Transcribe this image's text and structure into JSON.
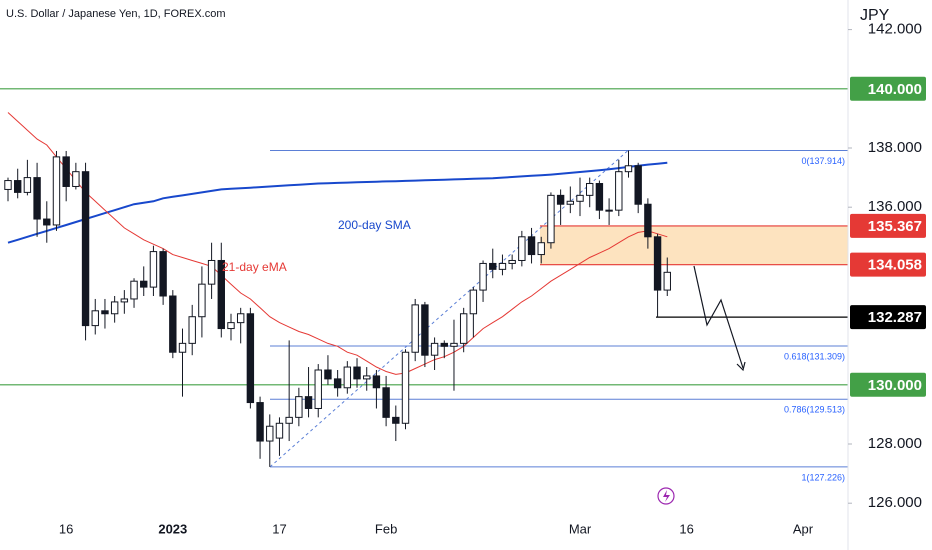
{
  "chart_data": {
    "type": "candlestick",
    "title": "U.S. Dollar / Japanese Yen, 1D, FOREX.com",
    "unit": "JPY",
    "categories": [
      null,
      null,
      null,
      null,
      null,
      null,
      "16",
      null,
      null,
      null,
      null,
      null,
      null,
      null,
      null,
      null,
      null,
      "2023",
      null,
      null,
      null,
      null,
      null,
      null,
      null,
      null,
      null,
      null,
      "17",
      null,
      null,
      null,
      null,
      null,
      null,
      null,
      null,
      null,
      null,
      "Feb",
      null,
      null,
      null,
      null,
      null,
      null,
      null,
      null,
      null,
      null,
      null,
      null,
      null,
      null,
      null,
      null,
      null,
      null,
      null,
      "Mar",
      null,
      null,
      null,
      null,
      null,
      null,
      null,
      null,
      null,
      null,
      "16",
      null,
      null,
      null,
      null,
      null,
      null,
      null,
      null,
      null,
      null,
      null,
      "Apr"
    ],
    "open": [
      136.6,
      136.9,
      136.5,
      137.0,
      135.6,
      135.4,
      137.7,
      136.7,
      137.2,
      132.0,
      132.5,
      132.4,
      132.8,
      132.9,
      133.5,
      133.3,
      134.5,
      133.0,
      131.1,
      131.4,
      132.3,
      133.4,
      134.2,
      131.9,
      132.1,
      132.4,
      129.4,
      128.1,
      128.2,
      128.7,
      128.9,
      129.6,
      129.2,
      130.5,
      130.2,
      129.9,
      130.6,
      130.2,
      130.3,
      129.9,
      128.9,
      128.7,
      131.1,
      132.7,
      131.0,
      131.4,
      131.3,
      131.4,
      132.4,
      133.2,
      134.1,
      133.9,
      134.1,
      134.2,
      135.0,
      134.4,
      134.8,
      136.4,
      136.1,
      136.2,
      136.4,
      136.8,
      135.9,
      135.9,
      137.2,
      137.4,
      136.1,
      135.0,
      133.2,
      null,
      null,
      null,
      null,
      null,
      null,
      null,
      null,
      null,
      null,
      null,
      null,
      null,
      null
    ],
    "high": [
      137.0,
      137.3,
      137.6,
      137.5,
      136.2,
      137.9,
      137.9,
      137.5,
      137.5,
      132.9,
      132.9,
      133.0,
      133.2,
      133.6,
      134.0,
      134.7,
      134.6,
      133.2,
      131.9,
      132.7,
      134.0,
      134.8,
      134.8,
      132.4,
      132.6,
      132.6,
      129.6,
      129.0,
      128.9,
      131.5,
      129.9,
      130.6,
      130.7,
      131.0,
      130.5,
      130.8,
      130.9,
      130.6,
      130.5,
      130.3,
      129.3,
      131.2,
      132.9,
      132.8,
      131.6,
      131.5,
      132.2,
      132.6,
      133.3,
      134.2,
      134.6,
      134.4,
      134.4,
      135.2,
      135.3,
      135.0,
      136.5,
      136.6,
      136.7,
      137.0,
      137.0,
      136.9,
      136.3,
      137.6,
      137.914,
      137.5,
      136.3,
      135.1,
      134.3,
      null,
      null,
      null,
      null,
      null,
      null,
      null,
      null,
      null,
      null,
      null,
      null,
      null,
      null
    ],
    "low": [
      136.2,
      136.3,
      136.4,
      135.0,
      134.8,
      135.2,
      136.2,
      136.6,
      131.5,
      131.7,
      131.9,
      132.1,
      132.4,
      132.6,
      133.0,
      133.0,
      132.7,
      130.9,
      129.6,
      131.0,
      131.6,
      132.9,
      131.6,
      131.5,
      131.4,
      129.2,
      127.5,
      127.226,
      127.6,
      128.1,
      128.6,
      128.9,
      128.9,
      130.0,
      129.6,
      129.7,
      129.9,
      129.8,
      129.2,
      128.6,
      128.1,
      128.5,
      130.8,
      130.6,
      130.5,
      130.9,
      129.8,
      131.1,
      131.6,
      132.8,
      133.6,
      133.7,
      133.9,
      134.0,
      134.1,
      134.1,
      134.6,
      135.4,
      135.8,
      135.7,
      136.0,
      135.6,
      135.4,
      135.7,
      137.0,
      135.8,
      134.6,
      132.287,
      133.0,
      null,
      null,
      null,
      null,
      null,
      null,
      null,
      null,
      null,
      null,
      null,
      null,
      null,
      null
    ],
    "close": [
      136.9,
      136.5,
      137.0,
      135.6,
      135.4,
      137.7,
      136.7,
      137.2,
      132.0,
      132.5,
      132.4,
      132.8,
      132.9,
      133.5,
      133.3,
      134.5,
      133.0,
      131.1,
      131.4,
      132.3,
      133.4,
      134.2,
      131.9,
      132.1,
      132.4,
      129.4,
      128.1,
      128.6,
      128.7,
      128.9,
      129.6,
      129.2,
      130.5,
      130.2,
      129.9,
      130.6,
      130.2,
      130.3,
      129.9,
      128.9,
      128.7,
      131.1,
      132.7,
      131.0,
      131.4,
      131.3,
      131.4,
      132.4,
      133.2,
      134.1,
      133.9,
      134.1,
      134.2,
      135.0,
      134.4,
      134.8,
      136.4,
      136.1,
      136.2,
      136.4,
      136.8,
      135.9,
      135.9,
      137.2,
      137.4,
      136.1,
      135.0,
      133.2,
      133.8,
      null,
      null,
      null,
      null,
      null,
      null,
      null,
      null,
      null,
      null,
      null,
      null,
      null,
      null
    ],
    "series": [
      {
        "name": "200-day SMA",
        "color": "#1848cc",
        "values": [
          134.8,
          134.9,
          135.0,
          135.1,
          135.2,
          135.3,
          135.4,
          135.5,
          135.6,
          135.7,
          135.8,
          135.9,
          136.0,
          136.1,
          136.15,
          136.2,
          136.3,
          136.35,
          136.4,
          136.45,
          136.5,
          136.55,
          136.6,
          136.62,
          136.64,
          136.66,
          136.68,
          136.7,
          136.72,
          136.74,
          136.76,
          136.78,
          136.8,
          136.81,
          136.82,
          136.83,
          136.84,
          136.85,
          136.86,
          136.87,
          136.88,
          136.89,
          136.9,
          136.91,
          136.92,
          136.93,
          136.94,
          136.95,
          136.96,
          136.97,
          136.98,
          137.0,
          137.02,
          137.04,
          137.06,
          137.08,
          137.1,
          137.13,
          137.16,
          137.19,
          137.22,
          137.25,
          137.28,
          137.32,
          137.36,
          137.4,
          137.44,
          137.47,
          137.5,
          null,
          null,
          null,
          null,
          null,
          null,
          null,
          null,
          null,
          null,
          null,
          null,
          null,
          null
        ]
      },
      {
        "name": "21-day eMA",
        "color": "#e53935",
        "values": [
          139.2,
          138.9,
          138.6,
          138.3,
          138.1,
          137.7,
          137.3,
          136.9,
          136.5,
          136.2,
          135.9,
          135.6,
          135.3,
          135.1,
          134.9,
          134.75,
          134.6,
          134.4,
          134.3,
          134.2,
          134.1,
          134.0,
          133.7,
          133.4,
          133.1,
          132.9,
          132.6,
          132.3,
          132.1,
          131.95,
          131.8,
          131.7,
          131.55,
          131.4,
          131.3,
          131.1,
          131.0,
          130.8,
          130.6,
          130.45,
          130.35,
          130.4,
          130.55,
          130.7,
          130.85,
          130.95,
          131.1,
          131.3,
          131.6,
          131.9,
          132.1,
          132.3,
          132.55,
          132.8,
          133.0,
          133.25,
          133.5,
          133.7,
          133.9,
          134.1,
          134.3,
          134.45,
          134.6,
          134.8,
          135.0,
          135.15,
          135.2,
          135.1,
          135.0,
          null,
          null,
          null,
          null,
          null,
          null,
          null,
          null,
          null,
          null,
          null,
          null,
          null,
          null
        ]
      }
    ],
    "ylim": [
      125.5,
      143.0
    ],
    "yticks": [
      {
        "value": 126,
        "label": "126.000"
      },
      {
        "value": 128,
        "label": "128.000"
      },
      {
        "value": 136,
        "label": "136.000"
      },
      {
        "value": 138,
        "label": "138.000"
      },
      {
        "value": 142,
        "label": "142.000"
      }
    ],
    "levels": [
      {
        "value": 140,
        "label": "140.000",
        "color": "#43a047"
      },
      {
        "value": 135.367,
        "label": "135.367",
        "color": "#e53935"
      },
      {
        "value": 134.058,
        "label": "134.058",
        "color": "#e53935"
      },
      {
        "value": 132.287,
        "label": "132.287",
        "color": "#000000"
      },
      {
        "value": 130,
        "label": "130.000",
        "color": "#43a047"
      }
    ],
    "zone_color": "#fde3bf",
    "fib_color": "#5b7fd6",
    "fib_levels": [
      {
        "value": 137.914,
        "label": "0(137.914)"
      },
      {
        "value": 131.309,
        "label": "0.618(131.309)"
      },
      {
        "value": 129.513,
        "label": "0.786(129.513)"
      },
      {
        "value": 127.226,
        "label": "1(127.226)"
      }
    ]
  }
}
